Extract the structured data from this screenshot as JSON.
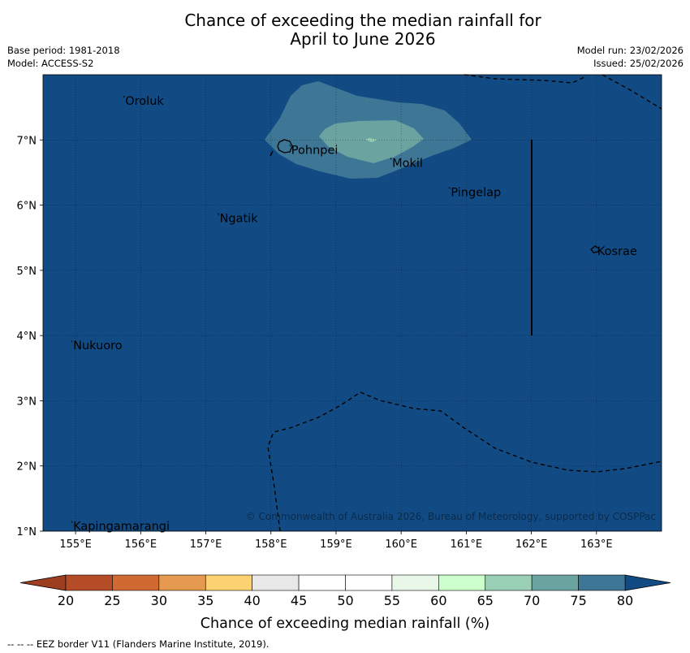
{
  "header": {
    "title_line1": "Chance of exceeding the median rainfall for",
    "title_line2": "April to June 2026",
    "base_period": "Base period: 1981-2018",
    "model": "Model: ACCESS-S2",
    "model_run": "Model run: 23/02/2026",
    "issued": "Issued: 25/02/2026"
  },
  "map": {
    "lon_range": [
      154.5,
      164.0
    ],
    "lat_range": [
      1.0,
      8.0
    ],
    "lon_ticks": [
      155,
      156,
      157,
      158,
      159,
      160,
      161,
      162,
      163
    ],
    "lat_ticks": [
      1,
      2,
      3,
      4,
      5,
      6,
      7
    ],
    "lon_tick_labels": [
      "155°E",
      "156°E",
      "157°E",
      "158°E",
      "159°E",
      "160°E",
      "161°E",
      "162°E",
      "163°E"
    ],
    "lat_tick_labels": [
      "1°N",
      "2°N",
      "3°N",
      "4°N",
      "5°N",
      "6°N",
      "7°N"
    ],
    "background_class": "80",
    "places": [
      {
        "name": "Oroluk",
        "lon": 155.75,
        "lat": 7.6
      },
      {
        "name": "Pohnpei",
        "lon": 158.3,
        "lat": 6.85
      },
      {
        "name": "Mokil",
        "lon": 159.85,
        "lat": 6.65
      },
      {
        "name": "Pingelap",
        "lon": 160.75,
        "lat": 6.2
      },
      {
        "name": "Ngatik",
        "lon": 157.2,
        "lat": 5.8
      },
      {
        "name": "Kosrae",
        "lon": 163.0,
        "lat": 5.3
      },
      {
        "name": "Nukuoro",
        "lon": 154.95,
        "lat": 3.85
      },
      {
        "name": "Kapingamarangi",
        "lon": 154.95,
        "lat": 1.08
      }
    ],
    "copyright": "© Commonwealth of Australia 2026, Bureau of Meteorology, supported by COSPPac"
  },
  "colorbar": {
    "levels": [
      20,
      25,
      30,
      35,
      40,
      45,
      50,
      55,
      60,
      65,
      70,
      75,
      80
    ],
    "level_labels": [
      "20",
      "25",
      "30",
      "35",
      "40",
      "45",
      "50",
      "55",
      "60",
      "65",
      "70",
      "75",
      "80"
    ],
    "colors": [
      "#b44d27",
      "#cf6a33",
      "#e59a4f",
      "#fcd270",
      "#e8e8e8",
      "#ffffff",
      "#ffffff",
      "#e9f7e9",
      "#ccffcc",
      "#99cfb4",
      "#6aa3a0",
      "#3e7696"
    ],
    "under_color": "#9c3e1f",
    "over_color": "#124b84",
    "title": "Chance of exceeding median rainfall (%)"
  },
  "footer": {
    "eez_note": "--  --  -- EEZ border V11 (Flanders Marine Institute, 2019)."
  }
}
